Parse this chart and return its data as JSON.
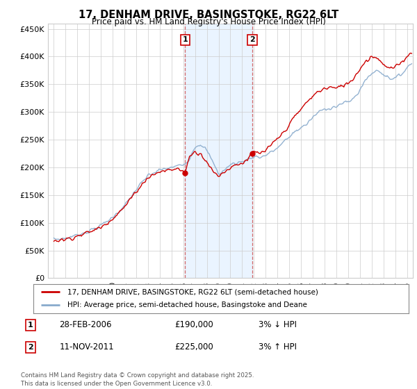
{
  "title": "17, DENHAM DRIVE, BASINGSTOKE, RG22 6LT",
  "subtitle": "Price paid vs. HM Land Registry's House Price Index (HPI)",
  "ylabel_ticks": [
    "£0",
    "£50K",
    "£100K",
    "£150K",
    "£200K",
    "£250K",
    "£300K",
    "£350K",
    "£400K",
    "£450K"
  ],
  "ytick_values": [
    0,
    50000,
    100000,
    150000,
    200000,
    250000,
    300000,
    350000,
    400000,
    450000
  ],
  "ylim": [
    0,
    460000
  ],
  "xlim_start": 1994.5,
  "xlim_end": 2025.5,
  "sale1_x": 2006.16,
  "sale1_y": 190000,
  "sale1_label": "1",
  "sale1_date": "28-FEB-2006",
  "sale1_price": "£190,000",
  "sale1_hpi": "3% ↓ HPI",
  "sale2_x": 2011.86,
  "sale2_y": 225000,
  "sale2_label": "2",
  "sale2_date": "11-NOV-2011",
  "sale2_price": "£225,000",
  "sale2_hpi": "3% ↑ HPI",
  "line_color_red": "#cc0000",
  "line_color_blue": "#88aacc",
  "background_color": "#ffffff",
  "plot_bg_color": "#ffffff",
  "grid_color": "#cccccc",
  "legend1_text": "17, DENHAM DRIVE, BASINGSTOKE, RG22 6LT (semi-detached house)",
  "legend2_text": "HPI: Average price, semi-detached house, Basingstoke and Deane",
  "footer": "Contains HM Land Registry data © Crown copyright and database right 2025.\nThis data is licensed under the Open Government Licence v3.0.",
  "marker_box_color": "#cc0000",
  "sale_dot_color": "#cc0000",
  "span_color": "#ddeeff"
}
